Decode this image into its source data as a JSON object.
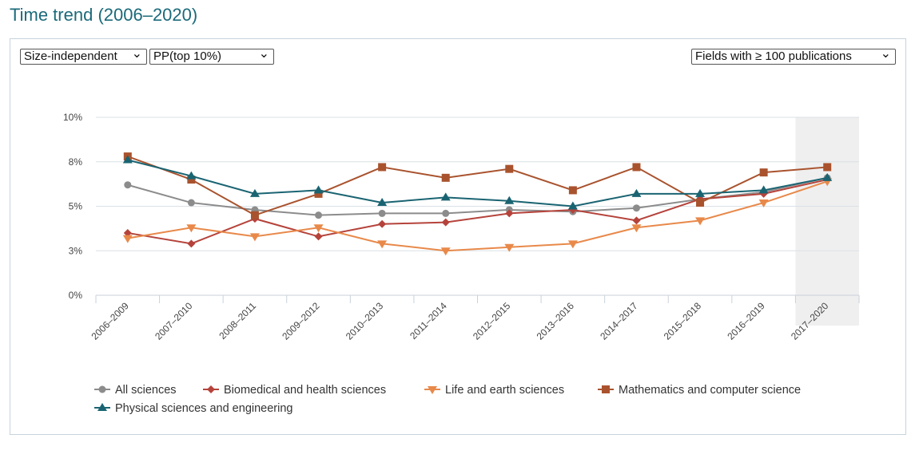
{
  "header": {
    "title": "Time trend (2006–2020)"
  },
  "controls": {
    "mode": "Size-independent",
    "indicator": "PP(top 10%)",
    "fields": "Fields with ≥ 100 publications",
    "chevron": "chevron-down-icon"
  },
  "chart_data": {
    "type": "line",
    "x": [
      "2006–2009",
      "2007–2010",
      "2008–2011",
      "2009–2012",
      "2010–2013",
      "2011–2014",
      "2012–2015",
      "2013–2016",
      "2014–2017",
      "2015–2018",
      "2016–2019",
      "2017–2020"
    ],
    "y_ticks": [
      "0%",
      "3%",
      "5%",
      "8%",
      "10%"
    ],
    "ylim": [
      0,
      10
    ],
    "grid": true,
    "highlighted_period": "2017–2020",
    "legend_position": "bottom",
    "series": [
      {
        "name": "All sciences",
        "color": "#8c8c8c",
        "marker": "circle",
        "values": [
          6.2,
          5.2,
          4.8,
          4.5,
          4.6,
          4.6,
          4.8,
          4.7,
          4.9,
          5.4,
          5.8,
          6.6
        ]
      },
      {
        "name": "Biomedical and health sciences",
        "color": "#b5433b",
        "marker": "diamond",
        "values": [
          3.5,
          2.9,
          4.3,
          3.3,
          4.0,
          4.1,
          4.6,
          4.8,
          4.2,
          5.4,
          5.7,
          6.5
        ]
      },
      {
        "name": "Life and earth sciences",
        "color": "#e8894a",
        "marker": "triangle-down",
        "values": [
          3.2,
          3.8,
          3.3,
          3.8,
          2.9,
          2.5,
          2.7,
          2.9,
          3.8,
          4.2,
          5.2,
          6.4
        ]
      },
      {
        "name": "Mathematics and computer science",
        "color": "#a9532e",
        "marker": "square",
        "values": [
          7.8,
          6.5,
          4.5,
          5.7,
          7.2,
          6.6,
          7.1,
          5.9,
          7.2,
          5.2,
          6.9,
          7.2
        ]
      },
      {
        "name": "Physical sciences and engineering",
        "color": "#1a6472",
        "marker": "triangle-up",
        "values": [
          7.6,
          6.7,
          5.7,
          5.9,
          5.2,
          5.5,
          5.3,
          5.0,
          5.7,
          5.7,
          5.9,
          6.6
        ]
      }
    ]
  }
}
